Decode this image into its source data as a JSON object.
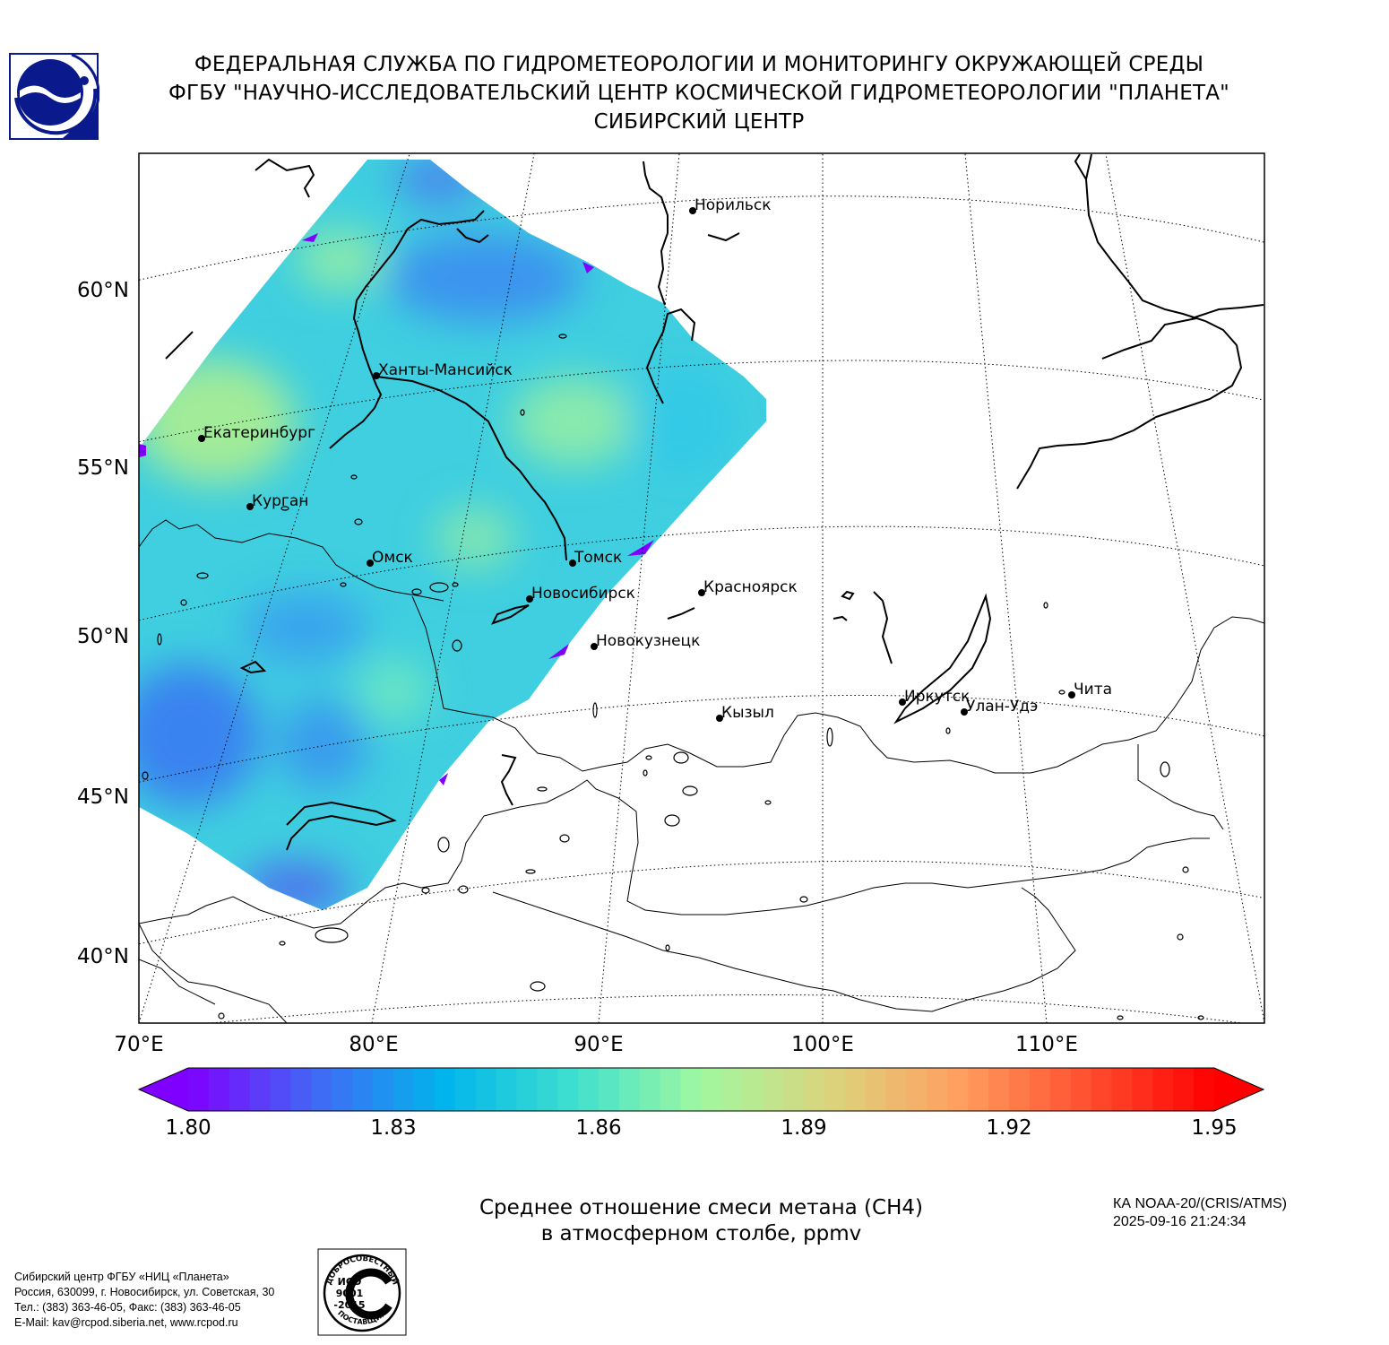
{
  "header": {
    "line1": "ФЕДЕРАЛЬНАЯ СЛУЖБА ПО ГИДРОМЕТЕОРОЛОГИИ И МОНИТОРИНГУ ОКРУЖАЮЩЕЙ СРЕДЫ",
    "line2": "ФГБУ \"НАУЧНО-ИССЛЕДОВАТЕЛЬСКИЙ ЦЕНТР КОСМИЧЕСКОЙ ГИДРОМЕТЕОРОЛОГИИ \"ПЛАНЕТА\"",
    "line3": "СИБИРСКИЙ ЦЕНТР"
  },
  "map": {
    "lat_labels": [
      "60°N",
      "55°N",
      "50°N",
      "45°N",
      "40°N"
    ],
    "lon_labels": [
      "70°E",
      "80°E",
      "90°E",
      "100°E",
      "110°E"
    ],
    "cities": [
      {
        "name": "Норильск"
      },
      {
        "name": "Ханты-Мансийск"
      },
      {
        "name": "Екатеринбург"
      },
      {
        "name": "Курган"
      },
      {
        "name": "Омск"
      },
      {
        "name": "Томск"
      },
      {
        "name": "Новосибирск"
      },
      {
        "name": "Красноярск"
      },
      {
        "name": "Новокузнецк"
      },
      {
        "name": "Кызыл"
      },
      {
        "name": "Иркутск"
      },
      {
        "name": "Улан-Удэ"
      },
      {
        "name": "Чита"
      }
    ]
  },
  "colorbar": {
    "min": 1.8,
    "max": 1.95,
    "ticks": [
      "1.80",
      "1.83",
      "1.86",
      "1.89",
      "1.92",
      "1.95"
    ],
    "colors": [
      "#7f00ff",
      "#4169f5",
      "#00b5eb",
      "#3ee0d0",
      "#a0f8a0",
      "#dbd47d",
      "#ffa060",
      "#ff5030",
      "#ff0000"
    ]
  },
  "title": {
    "line1": "Среднее отношение смеси метана (CH4)",
    "line2": "в атмосферном столбе, ppmv"
  },
  "satellite": {
    "instrument": "КА NOAA-20/(CRIS/ATMS)",
    "datetime": "2025-09-16 21:24:34"
  },
  "footer": {
    "line1": "Сибирский центр ФГБУ «НИЦ «Планета»",
    "line2": "Россия, 630099, г. Новосибирск, ул. Советская, 30",
    "line3": "Тел.: (383) 363-46-05, Факс: (383) 363-46-05",
    "line4": "E-Mail: kav@rcpod.siberia.net, www.rcpod.ru"
  },
  "iso_badge": {
    "top_text": "ДОБРОСОВЕСТНЫЙ",
    "line1": "ИСО",
    "line2": "9001",
    "line3": "-2015",
    "bottom_text": "ПОСТАВЩИК"
  }
}
